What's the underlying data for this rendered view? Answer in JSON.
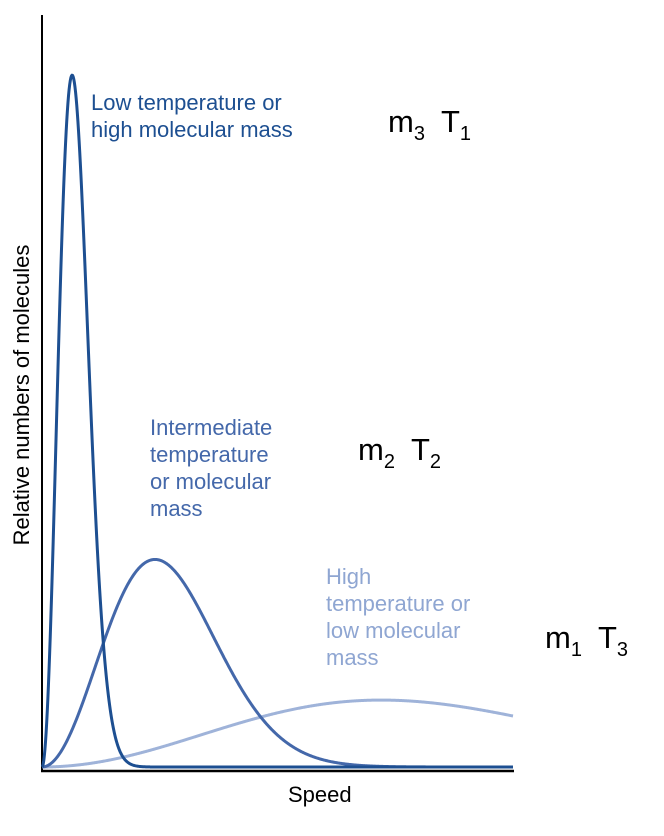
{
  "chart_data": {
    "type": "line",
    "title": "",
    "xlabel": "Speed",
    "ylabel": "Relative numbers of molecules",
    "xlim": [
      0,
      100
    ],
    "ylim": [
      0,
      100
    ],
    "grid": false,
    "series": [
      {
        "label": "Low temperature or high molecular mass",
        "label_lines": [
          "Low temperature or",
          "high molecular mass"
        ],
        "tag": {
          "m": "3",
          "T": "1"
        },
        "peak_speed": 6.4,
        "peak_height": 92,
        "color": "#1d4f91"
      },
      {
        "label": "Intermediate temperature or molecular mass",
        "label_lines": [
          "Intermediate",
          "temperature",
          "or molecular",
          "mass"
        ],
        "tag": {
          "m": "2",
          "T": "2"
        },
        "peak_speed": 24,
        "peak_height": 27.6,
        "color": "#4468aa"
      },
      {
        "label": "High temperature or low molecular mass",
        "label_lines": [
          "High",
          "temperature or",
          "low molecular",
          "mass"
        ],
        "tag": {
          "m": "1",
          "T": "3"
        },
        "peak_speed": 72,
        "peak_height": 8.9,
        "color": "#9fb3d9"
      }
    ]
  }
}
